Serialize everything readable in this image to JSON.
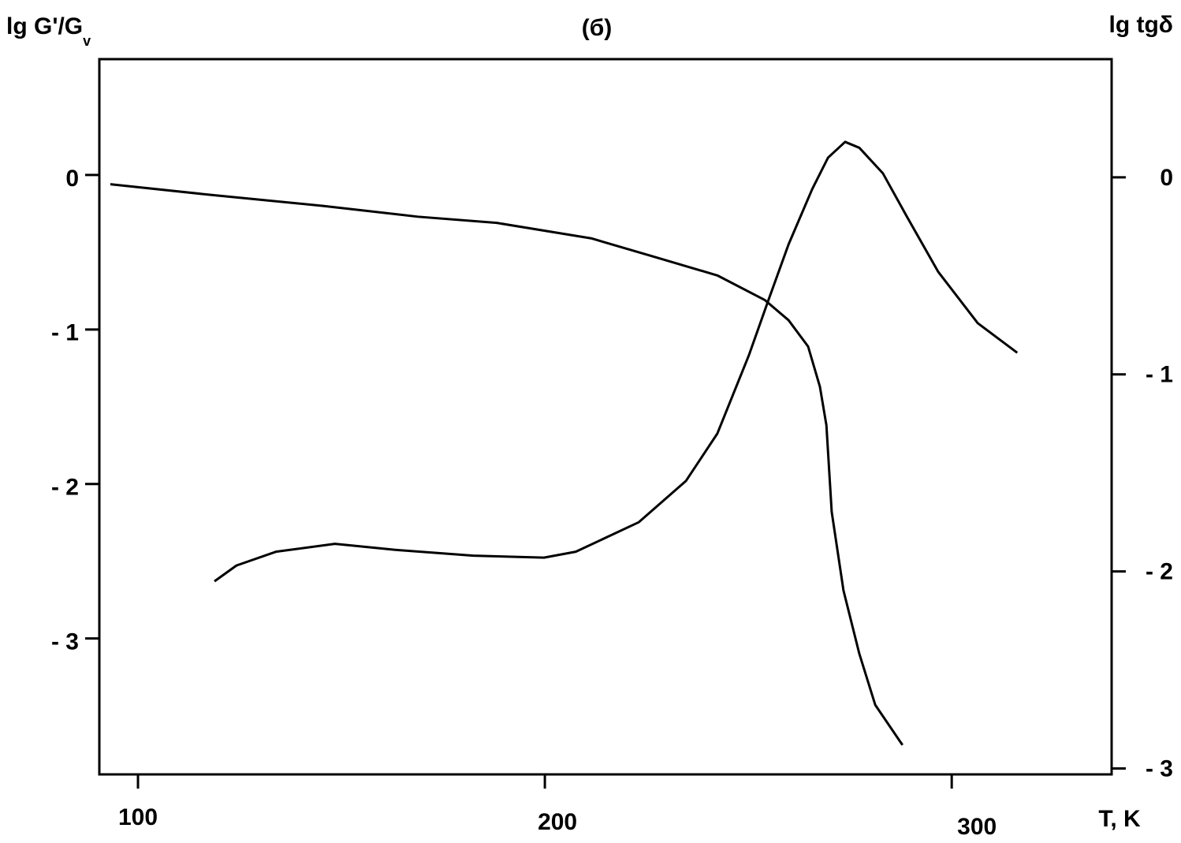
{
  "chart_data": {
    "type": "line",
    "title": "(б)",
    "x_label": "T, K",
    "y_label": "lg G'/G",
    "y_label_subscript": "v",
    "y2_label": "lg tgδ",
    "xlim": [
      90.5,
      339.3
    ],
    "xticks": [
      100,
      200,
      300
    ],
    "ylim": [
      -3.88,
      0.75
    ],
    "yticks": [
      0,
      {
        "value": -1,
        "label": "- 1"
      },
      {
        "value": -2,
        "label": "- 2"
      },
      {
        "value": -3,
        "label": "- 3"
      }
    ],
    "y2lim": [
      -3.03,
      0.6
    ],
    "y2ticks": [
      0,
      {
        "value": -1,
        "label": "- 1"
      },
      {
        "value": -2,
        "label": "- 2"
      },
      {
        "value": -3,
        "label": "- 3"
      }
    ],
    "series": [
      {
        "color": "#000000",
        "axis": "y",
        "x": [
          93.2,
          118.4,
          145.5,
          168.8,
          188.2,
          211.4,
          226.9,
          242.4,
          254.1,
          259.9,
          264.7,
          267.6,
          269.2,
          270.5,
          273.4,
          277.3,
          281.2,
          287.9
        ],
        "values": [
          -0.06,
          -0.13,
          -0.2,
          -0.27,
          -0.31,
          -0.41,
          -0.53,
          -0.65,
          -0.81,
          -0.94,
          -1.11,
          -1.37,
          -1.62,
          -2.18,
          -2.69,
          -3.1,
          -3.43,
          -3.69
        ]
      },
      {
        "color": "#000000",
        "axis": "y2",
        "x": [
          118.8,
          124.2,
          133.9,
          148.4,
          163.0,
          182.4,
          199.8,
          207.6,
          223.1,
          234.7,
          242.4,
          250.2,
          255.0,
          259.9,
          265.7,
          269.6,
          273.8,
          277.3,
          283.1,
          289.0,
          296.7,
          306.4,
          316.1
        ],
        "values": [
          -2.05,
          -1.97,
          -1.9,
          -1.86,
          -1.89,
          -1.92,
          -1.93,
          -1.9,
          -1.75,
          -1.54,
          -1.3,
          -0.9,
          -0.62,
          -0.34,
          -0.06,
          0.1,
          0.18,
          0.15,
          0.02,
          -0.2,
          -0.48,
          -0.74,
          -0.89
        ]
      }
    ]
  }
}
